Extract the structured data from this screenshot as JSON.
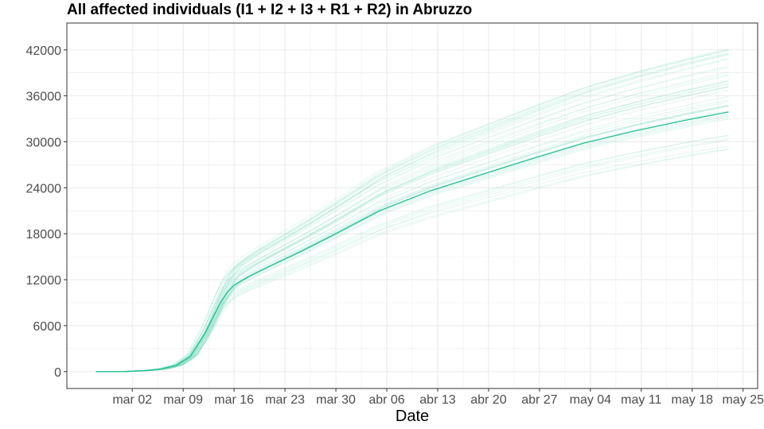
{
  "chart_data": {
    "type": "line",
    "title": "All affected individuals (I1 + I2 + I3 + R1 + R2) in  Abruzzo",
    "xlabel": "Date",
    "ylabel": "",
    "x_ticks": [
      {
        "date": "2020-03-02",
        "label": "mar 02"
      },
      {
        "date": "2020-03-09",
        "label": "mar 09"
      },
      {
        "date": "2020-03-16",
        "label": "mar 16"
      },
      {
        "date": "2020-03-23",
        "label": "mar 23"
      },
      {
        "date": "2020-03-30",
        "label": "mar 30"
      },
      {
        "date": "2020-04-06",
        "label": "abr 06"
      },
      {
        "date": "2020-04-13",
        "label": "abr 13"
      },
      {
        "date": "2020-04-20",
        "label": "abr 20"
      },
      {
        "date": "2020-04-27",
        "label": "abr 27"
      },
      {
        "date": "2020-05-04",
        "label": "may 04"
      },
      {
        "date": "2020-05-11",
        "label": "may 11"
      },
      {
        "date": "2020-05-18",
        "label": "may 18"
      },
      {
        "date": "2020-05-25",
        "label": "may 25"
      }
    ],
    "y_ticks": [
      0,
      6000,
      12000,
      18000,
      24000,
      30000,
      36000,
      42000
    ],
    "xlim": [
      "2020-02-22",
      "2020-05-27"
    ],
    "ylim": [
      -2200,
      45500
    ],
    "grid": true,
    "colors": {
      "main": "#1fbf8f",
      "ensemble": "#7fdcc0",
      "grid": "#ebebeb",
      "panel_border": "#333333"
    },
    "series": [
      {
        "role": "main",
        "x": [
          "2020-02-26",
          "2020-03-01",
          "2020-03-04",
          "2020-03-06",
          "2020-03-08",
          "2020-03-10",
          "2020-03-12",
          "2020-03-14",
          "2020-03-15",
          "2020-03-16",
          "2020-03-18",
          "2020-03-21",
          "2020-03-25",
          "2020-03-30",
          "2020-04-05",
          "2020-04-12",
          "2020-04-19",
          "2020-04-26",
          "2020-05-03",
          "2020-05-10",
          "2020-05-17",
          "2020-05-23"
        ],
        "y": [
          0,
          20,
          150,
          350,
          800,
          2000,
          5000,
          8800,
          10300,
          11300,
          12400,
          13800,
          15600,
          18000,
          21000,
          23600,
          25700,
          27800,
          29800,
          31400,
          32800,
          33900
        ]
      }
    ],
    "ensemble": {
      "runs": 45,
      "final_range": [
        29000,
        43000
      ],
      "final_date": "2020-05-23"
    }
  }
}
